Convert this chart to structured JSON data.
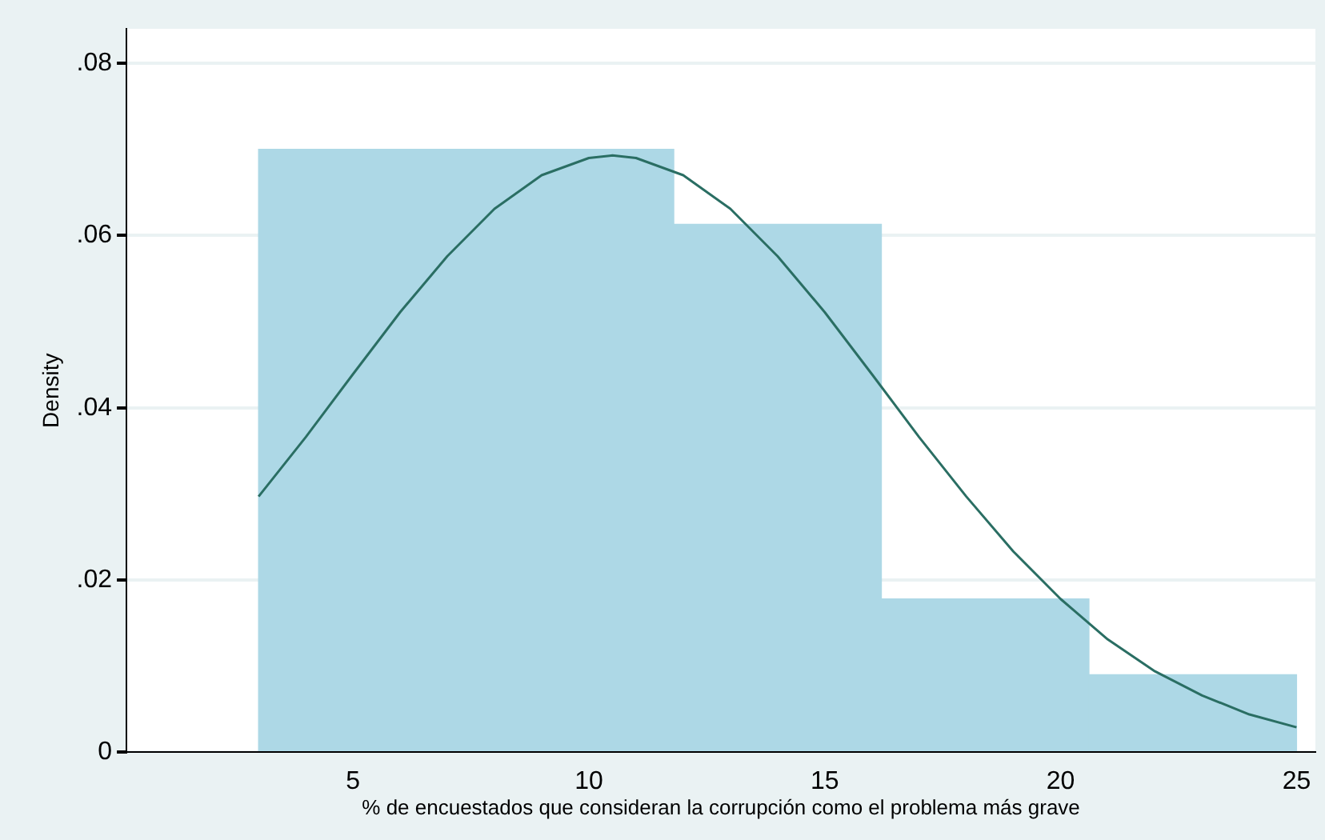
{
  "chart_data": {
    "type": "histogram",
    "xlabel": "% de encuestados que consideran la corrupción como el problema más grave",
    "ylabel": "Density",
    "bins": [
      3,
      7.4,
      11.8,
      16.2,
      20.6,
      25
    ],
    "values": [
      0.07,
      0.07,
      0.0613,
      0.0178,
      0.009
    ],
    "color": "#add8e6",
    "series": [
      {
        "type": "line",
        "color": "#2a6e63",
        "x": [
          3,
          4,
          5,
          6,
          7,
          8,
          9,
          10,
          10.5,
          11,
          12,
          13,
          14,
          15,
          16,
          17,
          18,
          19,
          20,
          21,
          22,
          23,
          24,
          25
        ],
        "values": [
          0.0297,
          0.0366,
          0.0439,
          0.0511,
          0.0576,
          0.0631,
          0.067,
          0.069,
          0.0693,
          0.069,
          0.067,
          0.0631,
          0.0576,
          0.0511,
          0.0439,
          0.0366,
          0.0297,
          0.0233,
          0.0178,
          0.0131,
          0.0094,
          0.0066,
          0.0044,
          0.0029
        ]
      }
    ],
    "xlim": [
      0.2,
      25.4
    ],
    "xticks": [
      5,
      10,
      15,
      20,
      25
    ],
    "ylim": [
      0,
      0.084
    ],
    "yticks": [
      0,
      {
        "value": 0.02,
        "label": ".02"
      },
      {
        "value": 0.04,
        "label": ".04"
      },
      {
        "value": 0.06,
        "label": ".06"
      },
      {
        "value": 0.08,
        "label": ".08"
      }
    ],
    "grid": "y",
    "legend": false,
    "marker": "none"
  }
}
